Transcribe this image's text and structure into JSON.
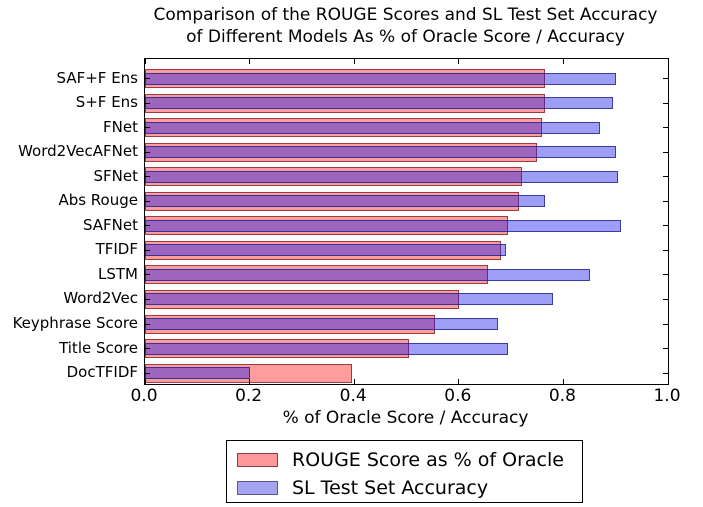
{
  "chart_data": {
    "type": "bar",
    "orientation": "horizontal",
    "title": "Comparison of the ROUGE Scores and SL Test Set Accuracy\nof Different Models As % of Oracle Score / Accuracy",
    "xlabel": "% of Oracle Score / Accuracy",
    "xlim": [
      0.0,
      1.0
    ],
    "x_tick_labels": [
      "0.0",
      "0.2",
      "0.4",
      "0.6",
      "0.8",
      "1.0"
    ],
    "grid": false,
    "legend_position": "below-chart-centered",
    "categories": [
      "SAF+F Ens",
      "S+F Ens",
      "FNet",
      "Word2VecAFNet",
      "SFNet",
      "Abs Rouge",
      "SAFNet",
      "TFIDF",
      "LSTM",
      "Word2Vec",
      "Keyphrase Score",
      "Title Score",
      "DocTFIDF"
    ],
    "series": [
      {
        "name": "ROUGE Score as % of Oracle",
        "fill_color": "#ff9999",
        "values": [
          0.765,
          0.765,
          0.76,
          0.75,
          0.72,
          0.715,
          0.695,
          0.68,
          0.655,
          0.6,
          0.555,
          0.505,
          0.395
        ]
      },
      {
        "name": "SL Test Set Accuracy",
        "fill_color": "#a5a5f2",
        "values": [
          0.9,
          0.895,
          0.87,
          0.9,
          0.905,
          0.765,
          0.91,
          0.69,
          0.85,
          0.78,
          0.675,
          0.695,
          0.2
        ]
      }
    ],
    "overlap_color": "#8c54c7",
    "axis_color": "#000000"
  }
}
